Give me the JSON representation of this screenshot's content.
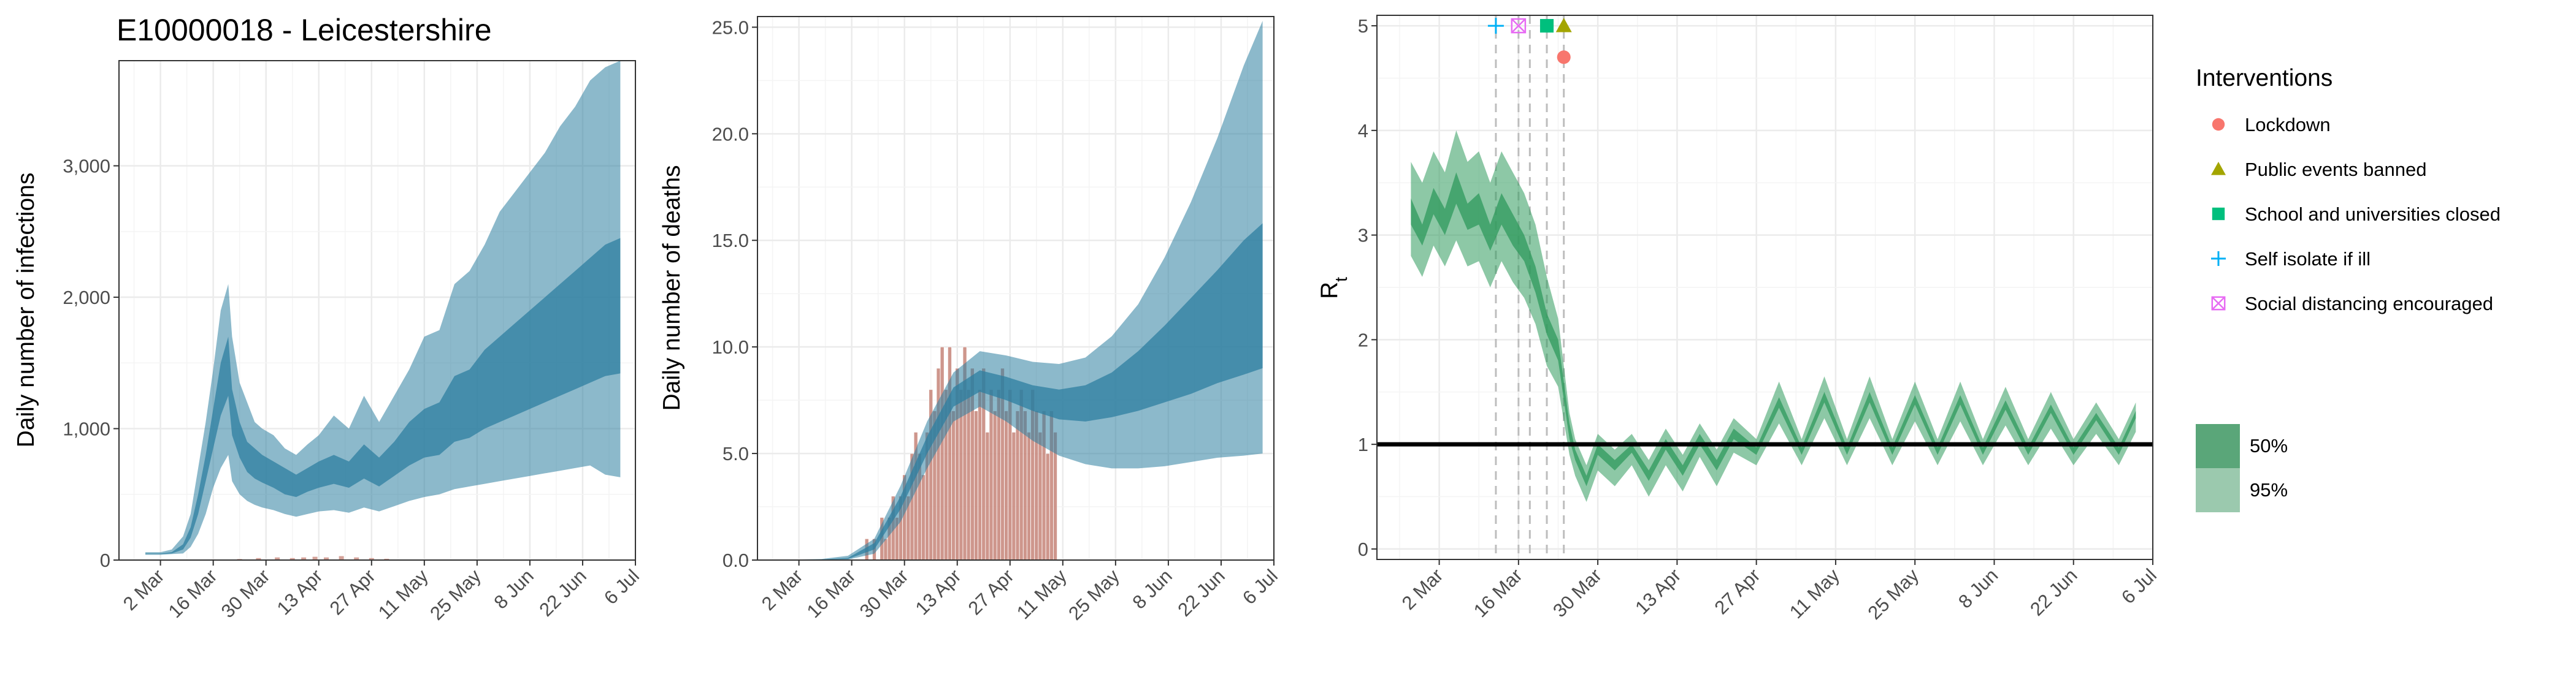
{
  "title": "E10000018 - Leicestershire",
  "colors": {
    "infections_band": "#2e7fa0",
    "deaths_band": "#2e7fa0",
    "deaths_bars": "#c98b80",
    "rt_band": "#2f9a5c",
    "gridline": "#ebebeb",
    "reference_line": "#000000",
    "lockdown": "#f8766d",
    "public_events": "#a3a500",
    "schools": "#00bf7d",
    "self_isolate": "#00b0f6",
    "social_distancing": "#e76bf3"
  },
  "legend": {
    "interventions_title": "Interventions",
    "interventions": [
      {
        "label": "Lockdown",
        "icon": "circle-icon",
        "color": "#f8766d"
      },
      {
        "label": "Public events banned",
        "icon": "triangle-icon",
        "color": "#a3a500"
      },
      {
        "label": "School and universities closed",
        "icon": "square-icon",
        "color": "#00bf7d"
      },
      {
        "label": "Self isolate if ill",
        "icon": "plus-icon",
        "color": "#00b0f6"
      },
      {
        "label": "Social distancing encouraged",
        "icon": "boxed-x-icon",
        "color": "#e76bf3"
      }
    ],
    "ci_entries": [
      {
        "label": "50%",
        "color": "#5aa679"
      },
      {
        "label": "95%",
        "color": "#9bc9ae"
      }
    ]
  },
  "chart_data": [
    {
      "type": "area",
      "name": "infections",
      "title": "E10000018 - Leicestershire",
      "xlabel": "",
      "ylabel": "Daily number of infections",
      "x_tick_labels": [
        "2 Mar",
        "16 Mar",
        "30 Mar",
        "13 Apr",
        "27 Apr",
        "11 May",
        "25 May",
        "8 Jun",
        "22 Jun",
        "6 Jul"
      ],
      "x_range": [
        "2020-02-20",
        "2020-07-06"
      ],
      "y_ticks": [
        0,
        1000,
        2000,
        3000
      ],
      "y_tick_labels": [
        "0",
        "1,000",
        "2,000",
        "3,000"
      ],
      "ylim": [
        0,
        3800
      ],
      "band_x": [
        "2020-02-27",
        "2020-03-02",
        "2020-03-05",
        "2020-03-08",
        "2020-03-10",
        "2020-03-12",
        "2020-03-14",
        "2020-03-16",
        "2020-03-18",
        "2020-03-20",
        "2020-03-21",
        "2020-03-23",
        "2020-03-25",
        "2020-03-27",
        "2020-03-29",
        "2020-04-01",
        "2020-04-04",
        "2020-04-07",
        "2020-04-10",
        "2020-04-13",
        "2020-04-17",
        "2020-04-21",
        "2020-04-25",
        "2020-04-29",
        "2020-05-03",
        "2020-05-07",
        "2020-05-11",
        "2020-05-15",
        "2020-05-19",
        "2020-05-23",
        "2020-05-27",
        "2020-05-31",
        "2020-06-04",
        "2020-06-08",
        "2020-06-12",
        "2020-06-16",
        "2020-06-20",
        "2020-06-24",
        "2020-06-28",
        "2020-07-02"
      ],
      "upper95": [
        60,
        60,
        80,
        180,
        350,
        700,
        1050,
        1450,
        1900,
        2100,
        1700,
        1350,
        1200,
        1050,
        1000,
        950,
        850,
        800,
        880,
        950,
        1100,
        1000,
        1250,
        1050,
        1250,
        1450,
        1700,
        1750,
        2100,
        2200,
        2400,
        2650,
        2800,
        2950,
        3100,
        3300,
        3450,
        3650,
        3750,
        3800
      ],
      "upper50": [
        50,
        50,
        60,
        120,
        250,
        500,
        800,
        1150,
        1500,
        1700,
        1300,
        1050,
        900,
        850,
        800,
        750,
        700,
        650,
        700,
        750,
        800,
        750,
        880,
        780,
        900,
        1050,
        1150,
        1200,
        1400,
        1450,
        1600,
        1700,
        1800,
        1900,
        2000,
        2100,
        2200,
        2300,
        2400,
        2450
      ],
      "lower50": [
        45,
        45,
        50,
        80,
        170,
        350,
        600,
        850,
        1100,
        1250,
        950,
        780,
        670,
        620,
        590,
        550,
        500,
        480,
        520,
        550,
        580,
        550,
        620,
        560,
        640,
        720,
        780,
        800,
        900,
        930,
        1000,
        1050,
        1100,
        1150,
        1200,
        1250,
        1300,
        1350,
        1400,
        1420
      ],
      "lower95": [
        40,
        40,
        45,
        50,
        100,
        200,
        350,
        550,
        700,
        800,
        600,
        500,
        450,
        420,
        400,
        380,
        350,
        330,
        350,
        370,
        380,
        360,
        400,
        370,
        410,
        450,
        480,
        500,
        540,
        560,
        580,
        600,
        620,
        640,
        660,
        680,
        700,
        720,
        650,
        630
      ],
      "observed_bars_x": [
        "2020-03-16",
        "2020-03-23",
        "2020-03-28",
        "2020-04-02",
        "2020-04-06",
        "2020-04-09",
        "2020-04-12",
        "2020-04-15",
        "2020-04-19",
        "2020-04-23",
        "2020-04-27",
        "2020-05-01"
      ],
      "observed_bars_values": [
        5,
        8,
        15,
        20,
        15,
        20,
        25,
        20,
        30,
        20,
        15,
        10
      ]
    },
    {
      "type": "area",
      "name": "deaths",
      "xlabel": "",
      "ylabel": "Daily number of deaths",
      "x_tick_labels": [
        "2 Mar",
        "16 Mar",
        "30 Mar",
        "13 Apr",
        "27 Apr",
        "11 May",
        "25 May",
        "8 Jun",
        "22 Jun",
        "6 Jul"
      ],
      "x_range": [
        "2020-02-20",
        "2020-07-06"
      ],
      "y_ticks": [
        0,
        5,
        10,
        15,
        20,
        25
      ],
      "y_tick_labels": [
        "0.0",
        "5.0",
        "10.0",
        "15.0",
        "20.0",
        "25.0"
      ],
      "ylim": [
        0,
        25.5
      ],
      "band_x": [
        "2020-03-01",
        "2020-03-08",
        "2020-03-15",
        "2020-03-22",
        "2020-03-29",
        "2020-04-05",
        "2020-04-12",
        "2020-04-19",
        "2020-04-26",
        "2020-05-03",
        "2020-05-10",
        "2020-05-17",
        "2020-05-24",
        "2020-05-31",
        "2020-06-07",
        "2020-06-14",
        "2020-06-21",
        "2020-06-28",
        "2020-07-03"
      ],
      "upper95": [
        0.02,
        0.05,
        0.2,
        1.0,
        3.5,
        6.5,
        8.8,
        9.8,
        9.6,
        9.3,
        9.2,
        9.5,
        10.5,
        12.0,
        14.2,
        16.8,
        19.8,
        23.2,
        25.3
      ],
      "upper50": [
        0.01,
        0.03,
        0.1,
        0.8,
        3.0,
        5.8,
        8.1,
        8.9,
        8.6,
        8.2,
        8.0,
        8.2,
        8.8,
        9.8,
        11.0,
        12.3,
        13.6,
        15.0,
        15.8
      ],
      "lower50": [
        0.0,
        0.02,
        0.05,
        0.5,
        2.4,
        5.0,
        7.2,
        7.9,
        7.5,
        7.0,
        6.6,
        6.5,
        6.7,
        7.0,
        7.4,
        7.8,
        8.3,
        8.7,
        9.0
      ],
      "lower95": [
        0.0,
        0.0,
        0.02,
        0.3,
        1.8,
        4.3,
        6.5,
        7.2,
        6.5,
        5.6,
        4.9,
        4.5,
        4.3,
        4.3,
        4.4,
        4.6,
        4.8,
        4.9,
        5.0
      ],
      "bars_x": [
        "2020-03-20",
        "2020-03-21",
        "2020-03-22",
        "2020-03-23",
        "2020-03-24",
        "2020-03-25",
        "2020-03-26",
        "2020-03-27",
        "2020-03-28",
        "2020-03-29",
        "2020-03-30",
        "2020-03-31",
        "2020-04-01",
        "2020-04-02",
        "2020-04-03",
        "2020-04-04",
        "2020-04-05",
        "2020-04-06",
        "2020-04-07",
        "2020-04-08",
        "2020-04-09",
        "2020-04-10",
        "2020-04-11",
        "2020-04-12",
        "2020-04-13",
        "2020-04-14",
        "2020-04-15",
        "2020-04-16",
        "2020-04-17",
        "2020-04-18",
        "2020-04-19",
        "2020-04-20",
        "2020-04-21",
        "2020-04-22",
        "2020-04-23",
        "2020-04-24",
        "2020-04-25",
        "2020-04-26",
        "2020-04-27",
        "2020-04-28",
        "2020-04-29",
        "2020-04-30",
        "2020-05-01",
        "2020-05-02",
        "2020-05-03",
        "2020-05-04",
        "2020-05-05",
        "2020-05-06",
        "2020-05-07",
        "2020-05-08",
        "2020-05-09"
      ],
      "bars_values": [
        1,
        0,
        1,
        0,
        2,
        1,
        2,
        3,
        2,
        3,
        4,
        3,
        5,
        6,
        5,
        4,
        6,
        8,
        7,
        9,
        10,
        8,
        10,
        7,
        9,
        8,
        10,
        8,
        9,
        7,
        8,
        9,
        6,
        8,
        7,
        8,
        9,
        7,
        8,
        6,
        7,
        8,
        7,
        6,
        8,
        7,
        6,
        7,
        5,
        7,
        6
      ]
    },
    {
      "type": "line",
      "name": "rt",
      "xlabel": "",
      "ylabel": "R",
      "ylabel_subscript": "t",
      "x_tick_labels": [
        "2 Mar",
        "16 Mar",
        "30 Mar",
        "13 Apr",
        "27 Apr",
        "11 May",
        "25 May",
        "8 Jun",
        "22 Jun",
        "6 Jul"
      ],
      "x_range": [
        "2020-02-20",
        "2020-07-06"
      ],
      "y_ticks": [
        0,
        1,
        2,
        3,
        4,
        5
      ],
      "y_tick_labels": [
        "0",
        "1",
        "2",
        "3",
        "4",
        "5"
      ],
      "ylim": [
        -0.1,
        5.1
      ],
      "reference_line_y": 1,
      "intervention_lines_x": [
        "2020-03-12",
        "2020-03-16",
        "2020-03-18",
        "2020-03-21",
        "2020-03-24"
      ],
      "band_x": [
        "2020-02-26",
        "2020-02-28",
        "2020-03-01",
        "2020-03-03",
        "2020-03-05",
        "2020-03-07",
        "2020-03-09",
        "2020-03-11",
        "2020-03-13",
        "2020-03-15",
        "2020-03-17",
        "2020-03-19",
        "2020-03-21",
        "2020-03-23",
        "2020-03-25",
        "2020-03-26",
        "2020-03-28",
        "2020-03-30",
        "2020-04-02",
        "2020-04-05",
        "2020-04-08",
        "2020-04-11",
        "2020-04-14",
        "2020-04-17",
        "2020-04-20",
        "2020-04-23",
        "2020-04-27",
        "2020-05-01",
        "2020-05-05",
        "2020-05-09",
        "2020-05-13",
        "2020-05-17",
        "2020-05-21",
        "2020-05-25",
        "2020-05-29",
        "2020-06-02",
        "2020-06-06",
        "2020-06-10",
        "2020-06-14",
        "2020-06-18",
        "2020-06-22",
        "2020-06-26",
        "2020-06-30",
        "2020-07-03"
      ],
      "upper95": [
        3.7,
        3.5,
        3.8,
        3.6,
        4.0,
        3.7,
        3.8,
        3.5,
        3.8,
        3.6,
        3.4,
        3.1,
        2.6,
        2.2,
        1.3,
        1.05,
        0.8,
        1.1,
        0.95,
        1.1,
        0.85,
        1.15,
        0.9,
        1.2,
        0.95,
        1.25,
        1.05,
        1.6,
        1.05,
        1.65,
        1.05,
        1.65,
        1.05,
        1.6,
        1.05,
        1.6,
        1.05,
        1.55,
        1.05,
        1.5,
        1.05,
        1.4,
        1.05,
        1.4
      ],
      "upper50": [
        3.35,
        3.1,
        3.45,
        3.25,
        3.6,
        3.3,
        3.4,
        3.1,
        3.4,
        3.2,
        3.0,
        2.7,
        2.25,
        2.0,
        1.2,
        0.95,
        0.7,
        1.0,
        0.85,
        1.0,
        0.75,
        1.05,
        0.8,
        1.1,
        0.85,
        1.15,
        0.97,
        1.45,
        0.97,
        1.5,
        0.97,
        1.5,
        0.97,
        1.47,
        0.97,
        1.47,
        0.97,
        1.42,
        0.97,
        1.38,
        0.97,
        1.3,
        0.97,
        1.32
      ],
      "lower50": [
        3.1,
        2.9,
        3.2,
        3.0,
        3.3,
        3.05,
        3.1,
        2.85,
        3.1,
        2.9,
        2.75,
        2.45,
        2.05,
        1.8,
        1.05,
        0.85,
        0.6,
        0.9,
        0.75,
        0.92,
        0.65,
        0.95,
        0.7,
        1.0,
        0.75,
        1.05,
        0.9,
        1.35,
        0.9,
        1.4,
        0.9,
        1.4,
        0.9,
        1.38,
        0.9,
        1.38,
        0.9,
        1.33,
        0.9,
        1.3,
        0.9,
        1.23,
        0.9,
        1.25
      ],
      "lower95": [
        2.8,
        2.6,
        2.9,
        2.7,
        2.95,
        2.7,
        2.75,
        2.5,
        2.75,
        2.55,
        2.4,
        2.15,
        1.75,
        1.55,
        0.9,
        0.7,
        0.45,
        0.75,
        0.6,
        0.8,
        0.5,
        0.8,
        0.55,
        0.88,
        0.6,
        0.92,
        0.8,
        1.2,
        0.8,
        1.25,
        0.8,
        1.25,
        0.8,
        1.22,
        0.8,
        1.22,
        0.8,
        1.18,
        0.8,
        1.15,
        0.8,
        1.1,
        0.8,
        1.12
      ],
      "intervention_markers": [
        {
          "label": "Self isolate if ill",
          "x": "2020-03-12",
          "y": 5.0
        },
        {
          "label": "Social distancing encouraged",
          "x": "2020-03-16",
          "y": 5.0
        },
        {
          "label": "School and universities closed",
          "x": "2020-03-21",
          "y": 5.0
        },
        {
          "label": "Public events banned",
          "x": "2020-03-24",
          "y": 5.0
        },
        {
          "label": "Lockdown",
          "x": "2020-03-24",
          "y": 4.7
        }
      ]
    }
  ]
}
